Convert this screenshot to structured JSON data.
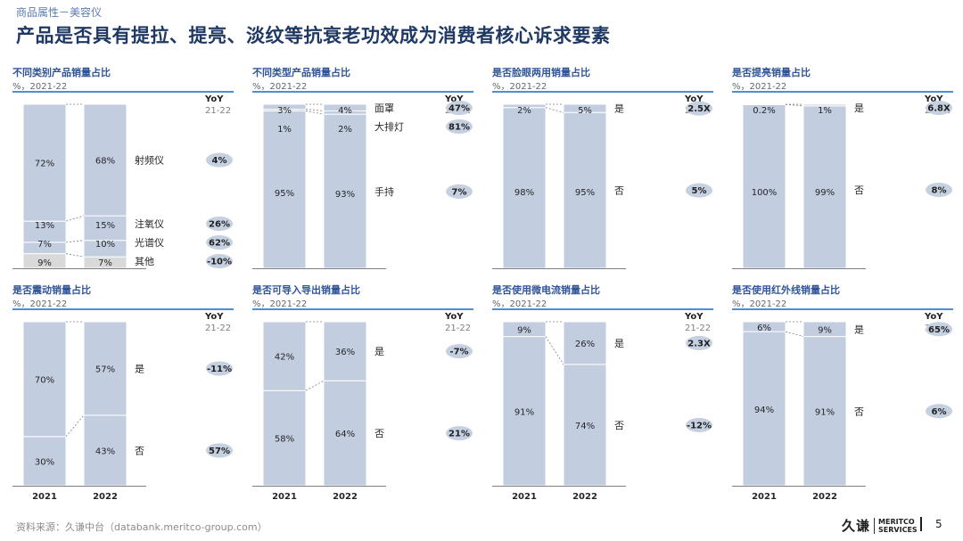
{
  "header": {
    "breadcrumb": "商品属性－美容仪",
    "title": "产品是否具有提拉、提亮、淡纹等抗衰老功效成为消费者核心诉求要素"
  },
  "years": [
    "2021",
    "2022"
  ],
  "yoy_label": "YoY",
  "yoy_period": "21-22",
  "footer": {
    "source": "资料来源：久谦中台（databank.meritco-group.com）",
    "logo_mark": "久谦",
    "logo_line1": "MERITCO",
    "logo_line2": "SERVICES",
    "page": "5"
  },
  "colors": {
    "bar": "#c2cde0",
    "other": "#d9d9d9",
    "badge": "#c5d0e0",
    "rule": "#4f8fd0",
    "title": "#1f3864"
  },
  "chart_data": [
    {
      "type": "bar",
      "stacked": true,
      "title": "不同类别产品销量占比",
      "subtitle": "%，2021-22",
      "categories": [
        "2021",
        "2022"
      ],
      "show_years": false,
      "series": [
        {
          "name": "其他",
          "values": [
            9,
            7
          ],
          "labels": [
            "9%",
            "7%"
          ],
          "yoy": "-10%",
          "color": "#d9d9d9"
        },
        {
          "name": "光谱仪",
          "values": [
            7,
            10
          ],
          "labels": [
            "7%",
            "10%"
          ],
          "yoy": "62%"
        },
        {
          "name": "注氧仪",
          "values": [
            13,
            15
          ],
          "labels": [
            "13%",
            "15%"
          ],
          "yoy": "26%"
        },
        {
          "name": "射频仪",
          "values": [
            72,
            68
          ],
          "labels": [
            "72%",
            "68%"
          ],
          "yoy": "4%"
        }
      ]
    },
    {
      "type": "bar",
      "stacked": true,
      "title": "不同类型产品销量占比",
      "subtitle": "%，2021-22",
      "categories": [
        "2021",
        "2022"
      ],
      "show_years": false,
      "series": [
        {
          "name": "手持",
          "values": [
            95,
            93
          ],
          "labels": [
            "95%",
            "93%"
          ],
          "yoy": "7%"
        },
        {
          "name": "大排灯",
          "values": [
            1,
            2
          ],
          "labels": [
            "1%",
            "2%"
          ],
          "yoy": "81%"
        },
        {
          "name": "面罩",
          "values": [
            3,
            4
          ],
          "labels": [
            "3%",
            "4%"
          ],
          "yoy": "47%"
        }
      ]
    },
    {
      "type": "bar",
      "stacked": true,
      "title": "是否脸眼两用销量占比",
      "subtitle": "%，2021-22",
      "categories": [
        "2021",
        "2022"
      ],
      "show_years": false,
      "series": [
        {
          "name": "否",
          "values": [
            98,
            95
          ],
          "labels": [
            "98%",
            "95%"
          ],
          "yoy": "5%"
        },
        {
          "name": "是",
          "values": [
            2,
            5
          ],
          "labels": [
            "2%",
            "5%"
          ],
          "yoy": "2.5X"
        }
      ]
    },
    {
      "type": "bar",
      "stacked": true,
      "title": "是否提亮销量占比",
      "subtitle": "%，2021-22",
      "categories": [
        "2021",
        "2022"
      ],
      "show_years": false,
      "series": [
        {
          "name": "否",
          "values": [
            100,
            99
          ],
          "labels": [
            "100%",
            "99%"
          ],
          "yoy": "8%"
        },
        {
          "name": "是",
          "values": [
            0.2,
            1
          ],
          "labels": [
            "0.2%",
            "1%"
          ],
          "yoy": "6.8X"
        }
      ]
    },
    {
      "type": "bar",
      "stacked": true,
      "title": "是否震动销量占比",
      "subtitle": "%，2021-22",
      "categories": [
        "2021",
        "2022"
      ],
      "show_years": true,
      "series": [
        {
          "name": "否",
          "values": [
            30,
            43
          ],
          "labels": [
            "30%",
            "43%"
          ],
          "yoy": "57%"
        },
        {
          "name": "是",
          "values": [
            70,
            57
          ],
          "labels": [
            "70%",
            "57%"
          ],
          "yoy": "-11%"
        }
      ]
    },
    {
      "type": "bar",
      "stacked": true,
      "title": "是否可导入导出销量占比",
      "subtitle": "%，2021-22",
      "categories": [
        "2021",
        "2022"
      ],
      "show_years": true,
      "series": [
        {
          "name": "否",
          "values": [
            58,
            64
          ],
          "labels": [
            "58%",
            "64%"
          ],
          "yoy": "21%"
        },
        {
          "name": "是",
          "values": [
            42,
            36
          ],
          "labels": [
            "42%",
            "36%"
          ],
          "yoy": "-7%"
        }
      ]
    },
    {
      "type": "bar",
      "stacked": true,
      "title": "是否使用微电流销量占比",
      "subtitle": "%，2021-22",
      "categories": [
        "2021",
        "2022"
      ],
      "show_years": true,
      "series": [
        {
          "name": "否",
          "values": [
            91,
            74
          ],
          "labels": [
            "91%",
            "74%"
          ],
          "yoy": "-12%"
        },
        {
          "name": "是",
          "values": [
            9,
            26
          ],
          "labels": [
            "9%",
            "26%"
          ],
          "yoy": "2.3X"
        }
      ]
    },
    {
      "type": "bar",
      "stacked": true,
      "title": "是否使用红外线销量占比",
      "subtitle": "%，2021-22",
      "categories": [
        "2021",
        "2022"
      ],
      "show_years": true,
      "series": [
        {
          "name": "否",
          "values": [
            94,
            91
          ],
          "labels": [
            "94%",
            "91%"
          ],
          "yoy": "6%"
        },
        {
          "name": "是",
          "values": [
            6,
            9
          ],
          "labels": [
            "6%",
            "9%"
          ],
          "yoy": "65%"
        }
      ]
    }
  ]
}
